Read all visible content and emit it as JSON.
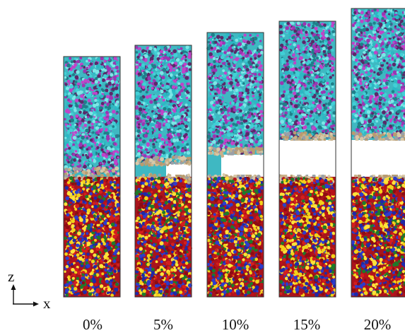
{
  "axes": {
    "z_label": "z",
    "x_label": "x"
  },
  "colors": {
    "top_layer": [
      "#41d0d6",
      "#2bb8c4",
      "#7ce6e6",
      "#9b36b2",
      "#c044c8",
      "#1f7f8a",
      "#5a2a6a"
    ],
    "bottom_layer": [
      "#b8121a",
      "#d41e1e",
      "#8e0c12",
      "#1f2aa8",
      "#2d3ccc",
      "#f2d21a",
      "#ffe23a",
      "#1e7a2a"
    ],
    "interface": [
      "#c9b18a",
      "#b89c70",
      "#d8c8a8",
      "#9aa0a6"
    ],
    "frame": "#333333"
  },
  "panels": [
    {
      "label": "0%",
      "strain": 0.0,
      "gap_fraction": 0.0
    },
    {
      "label": "5%",
      "strain": 0.05,
      "gap_fraction": 0.35
    },
    {
      "label": "10%",
      "strain": 0.1,
      "gap_fraction": 0.6
    },
    {
      "label": "15%",
      "strain": 0.15,
      "gap_fraction": 1.0
    },
    {
      "label": "20%",
      "strain": 0.2,
      "gap_fraction": 1.0
    }
  ]
}
